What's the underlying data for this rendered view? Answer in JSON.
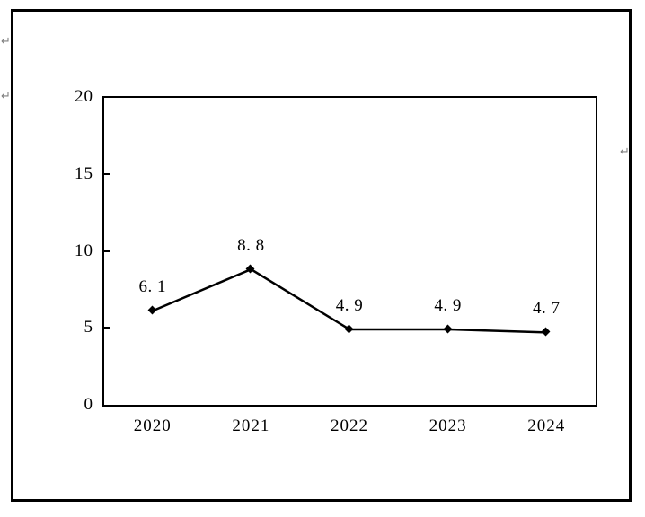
{
  "page": {
    "background": "#ffffff",
    "frame_color": "#000000"
  },
  "decorations": {
    "return_glyph": "↵",
    "return_color": "#808080"
  },
  "chart_data": {
    "type": "line",
    "title": "",
    "xlabel": "",
    "ylabel": "",
    "categories": [
      "2020",
      "2021",
      "2022",
      "2023",
      "2024"
    ],
    "series": [
      {
        "name": "",
        "values": [
          6.1,
          8.8,
          4.9,
          4.9,
          4.7
        ],
        "point_labels": [
          "6. 1",
          "8. 8",
          "4. 9",
          "4. 9",
          "4. 7"
        ],
        "color": "#000000",
        "marker": "diamond"
      }
    ],
    "ylim": [
      0,
      20
    ],
    "y_ticks": [
      0,
      5,
      10,
      15,
      20
    ],
    "y_tick_labels": [
      "0",
      "5",
      "10",
      "15",
      "20"
    ],
    "grid": false,
    "legend": "none",
    "axis_color": "#000000",
    "text_color": "#000000"
  }
}
